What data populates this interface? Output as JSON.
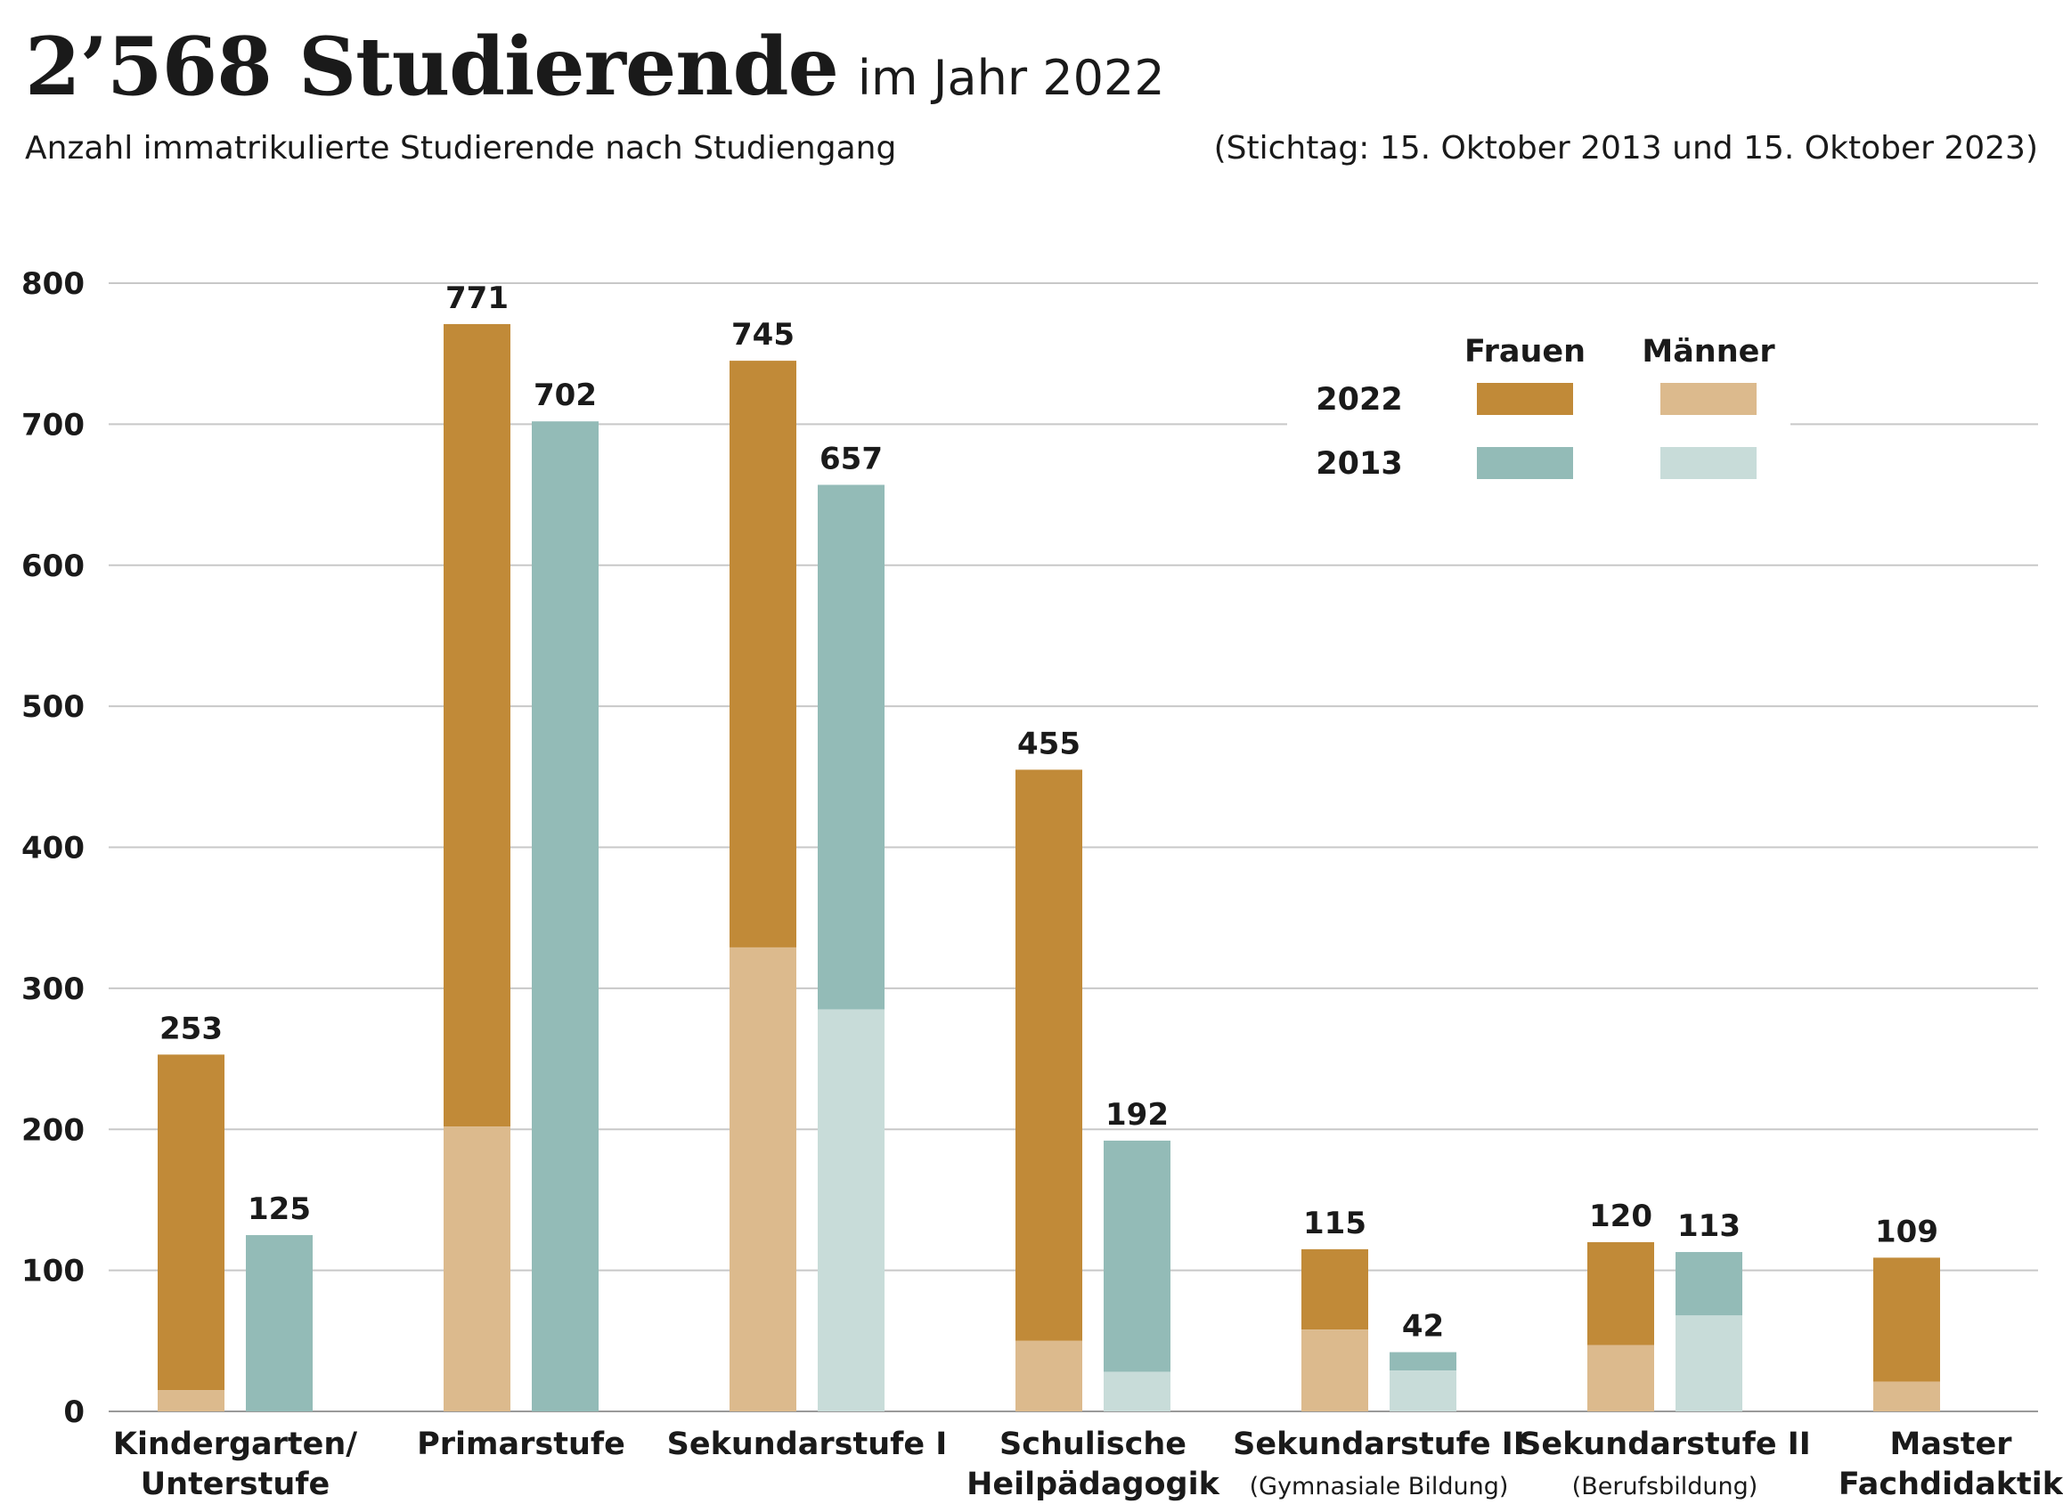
{
  "header": {
    "title_main": "2’568 Studierende",
    "title_sub": "im Jahr 2022",
    "subtitle": "Anzahl immatrikulierte Studierende nach Studiengang",
    "stichtag": "(Stichtag: 15. Oktober 2013 und 15. Oktober 2023)"
  },
  "chart_data": {
    "type": "bar",
    "stacked": true,
    "categories": [
      [
        "Kindergarten/",
        "Unterstufe"
      ],
      [
        "Primarstufe"
      ],
      [
        "Sekundarstufe I"
      ],
      [
        "Schulische",
        "Heilpädagogik"
      ],
      [
        "Sekundarstufe II",
        "(Gymnasiale Bildung)"
      ],
      [
        "Sekundarstufe II",
        "(Berufsbildung)"
      ],
      [
        "Master",
        "Fachdidaktik"
      ]
    ],
    "series": [
      {
        "year": "2022",
        "total": [
          253,
          771,
          745,
          455,
          115,
          120,
          109
        ],
        "men": [
          15,
          202,
          329,
          50,
          58,
          47,
          21
        ]
      },
      {
        "year": "2013",
        "total": [
          125,
          702,
          657,
          192,
          42,
          113,
          null
        ],
        "men": [
          0,
          0,
          285,
          28,
          29,
          68,
          null
        ]
      }
    ],
    "ylim": [
      0,
      800
    ],
    "yticks": [
      0,
      100,
      200,
      300,
      400,
      500,
      600,
      700,
      800
    ],
    "grid": true,
    "legend": {
      "placement": "top-right",
      "col_labels": [
        "Frauen",
        "Männer"
      ],
      "row_labels": [
        "2022",
        "2013"
      ]
    },
    "colors": {
      "women_2022": "#c18a38",
      "men_2022": "#dcba8d",
      "women_2013": "#93bbb7",
      "men_2013": "#c8dcd9",
      "grid": "#c8c8c8",
      "text": "#1a1a1a"
    }
  }
}
